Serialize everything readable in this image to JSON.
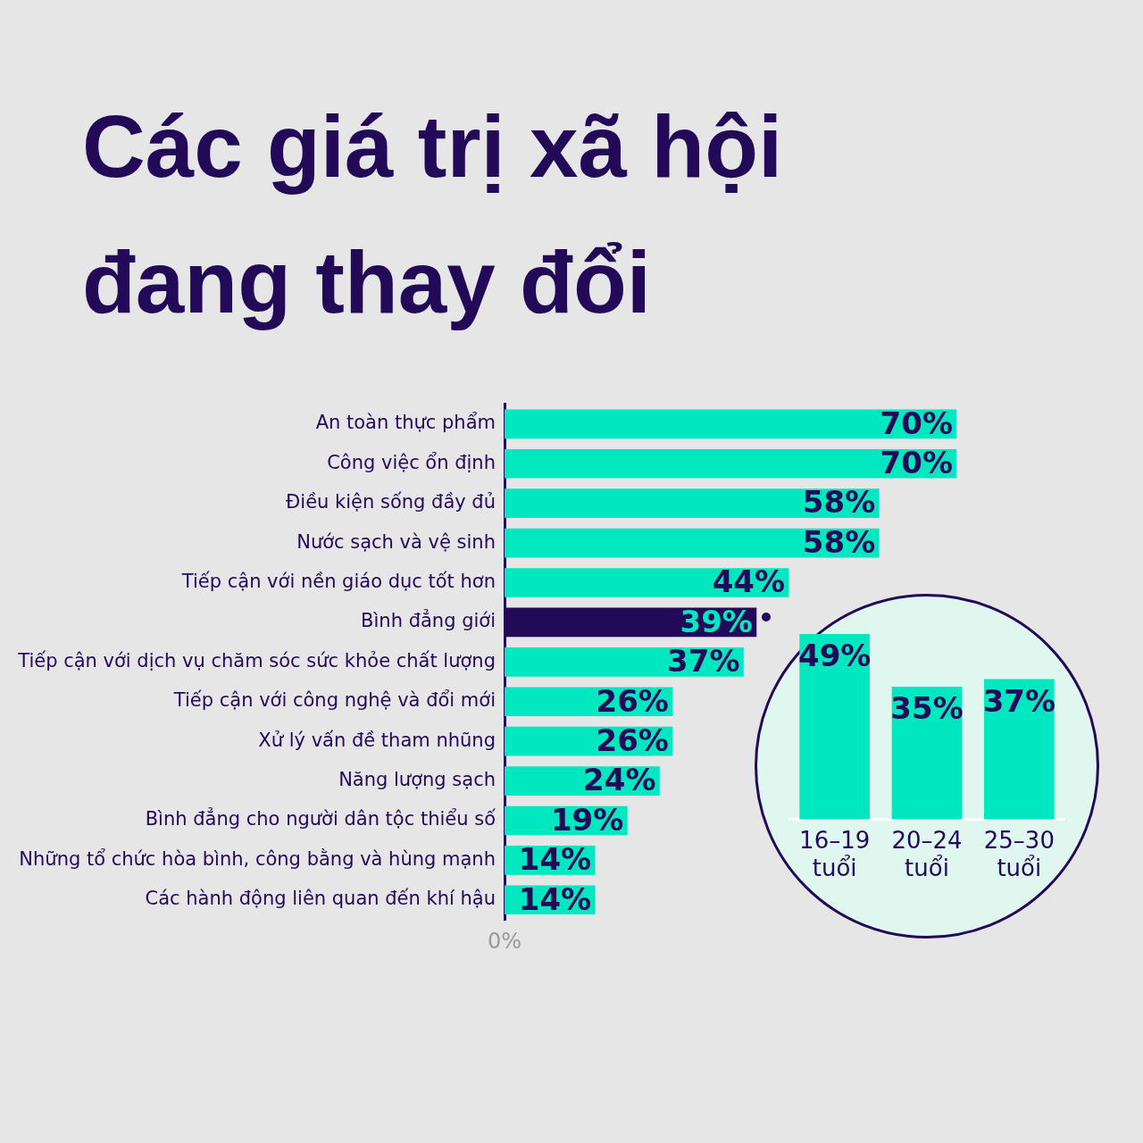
{
  "chart_data": [
    {
      "type": "bar",
      "title": "Các giá trị xã hội đang thay đổi",
      "orientation": "horizontal",
      "categories": [
        "An toàn thực phẩm",
        "Công việc ổn định",
        "Điều kiện sống đầy đủ",
        "Nước sạch và vệ sinh",
        "Tiếp cận với nền giáo dục tốt hơn",
        "Bình đẳng giới",
        "Tiếp cận với dịch vụ chăm sóc sức khỏe chất lượng",
        "Tiếp cận với công nghệ và đổi mới",
        "Xử lý vấn đề tham nhũng",
        "Năng lượng sạch",
        "Bình đẳng cho người dân tộc thiểu số",
        "Những tổ chức hòa bình, công bằng và hùng mạnh",
        "Các hành động liên quan đến khí hậu"
      ],
      "values": [
        70,
        70,
        58,
        58,
        44,
        39,
        37,
        26,
        26,
        24,
        19,
        14,
        14
      ],
      "value_labels": [
        "70%",
        "70%",
        "58%",
        "58%",
        "44%",
        "39%",
        "37%",
        "26%",
        "26%",
        "24%",
        "19%",
        "14%",
        "14%"
      ],
      "colors": [
        "#00e8c0",
        "#00e8c0",
        "#00e8c0",
        "#00e8c0",
        "#00e8c0",
        "#230a59",
        "#00e8c0",
        "#00e8c0",
        "#00e8c0",
        "#00e8c0",
        "#00e8c0",
        "#00e8c0",
        "#00e8c0"
      ],
      "annotations": [
        "0%"
      ],
      "grid": false,
      "legend": false
    },
    {
      "type": "bar",
      "categories": [
        "16–19 tuổi",
        "20–24 tuổi",
        "25–30 tuổi"
      ],
      "values": [
        49,
        35,
        37
      ],
      "value_labels": [
        "49%",
        "35%",
        "37%"
      ],
      "color": "#00e8c0",
      "tick_labels": "x",
      "grid": false,
      "legend": false
    }
  ]
}
